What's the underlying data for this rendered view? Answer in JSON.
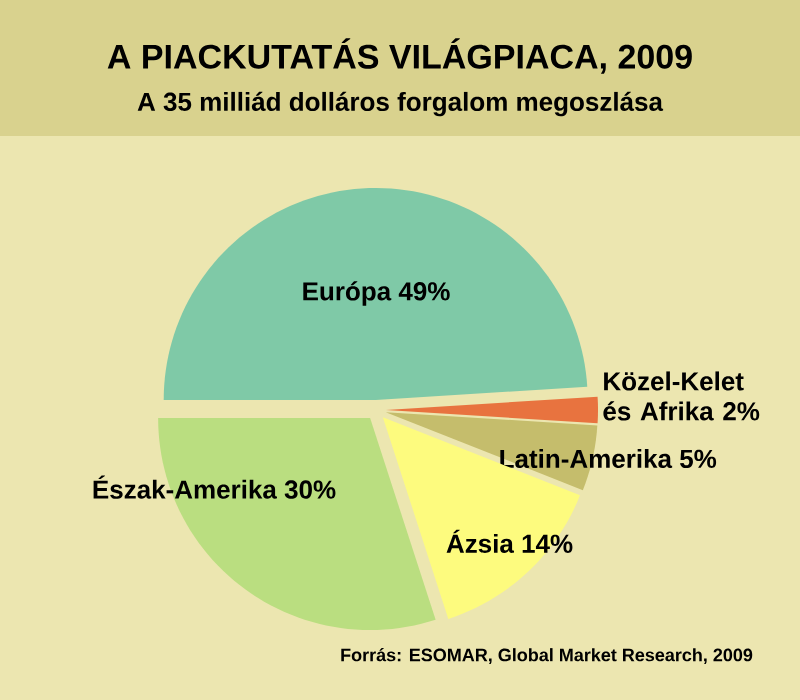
{
  "chart_data": {
    "type": "pie",
    "title": "A PIACKUTATÁS VILÁGPIACA, 2009",
    "subtitle": "A 35 milliád dolláros forgalom megoszlása",
    "categories": [
      "Európa",
      "Közel-Kelet és Afrika",
      "Latin-Amerika",
      "Ázsia",
      "Észak-Amerika"
    ],
    "values": [
      49,
      2,
      5,
      14,
      30
    ],
    "value_labels": [
      "49%",
      "2%",
      "5%",
      "14%",
      "30%"
    ],
    "colors": [
      "#7fc9a7",
      "#e8733f",
      "#c5bd6c",
      "#fdfb7e",
      "#bade80"
    ],
    "annotations": [
      "Forrás: ESOMAR, Global Market Research, 2009"
    ]
  }
}
